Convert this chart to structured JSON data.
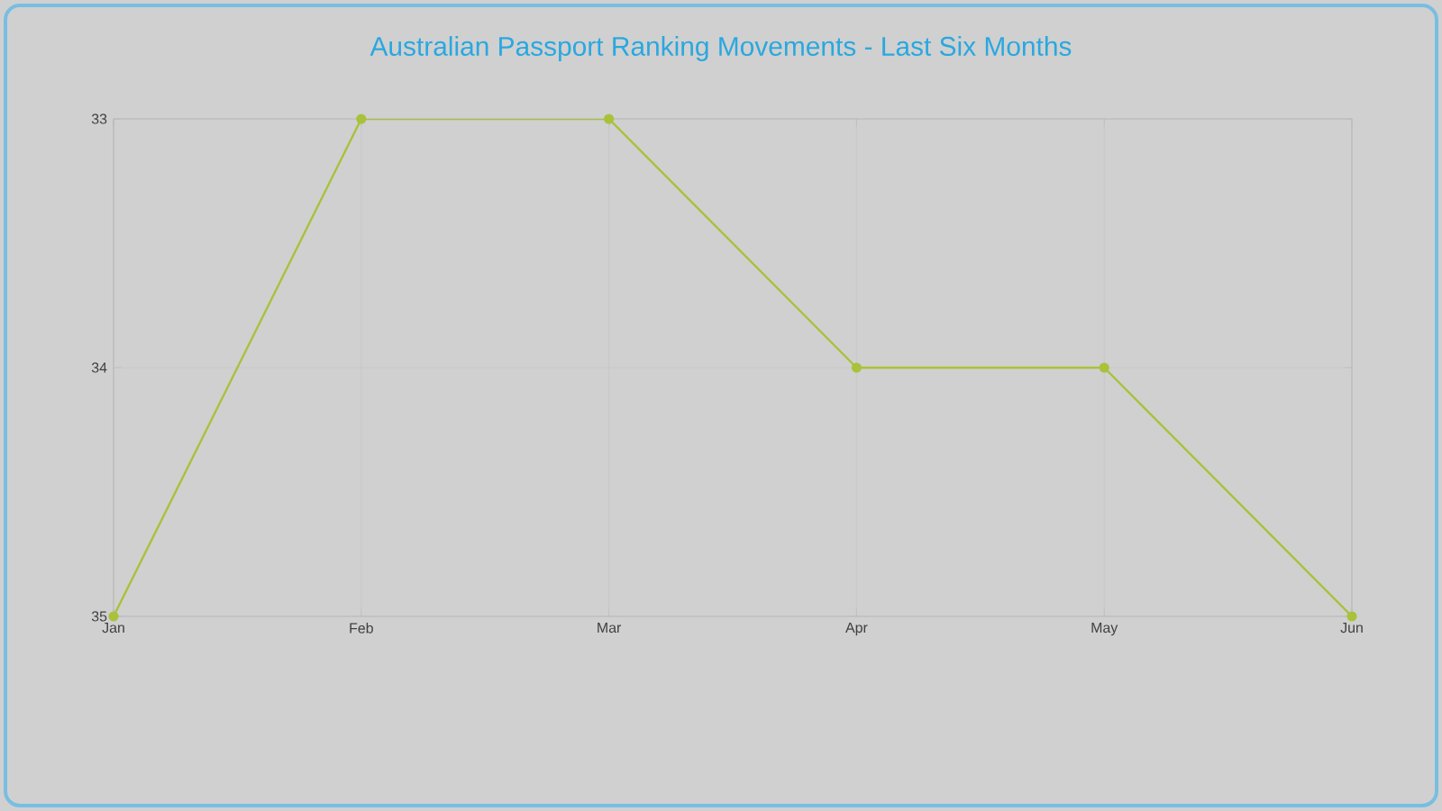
{
  "chart_data": {
    "type": "line",
    "title": "Australian Passport Ranking Movements - Last Six Months",
    "categories": [
      "Jan",
      "Feb",
      "Mar",
      "Apr",
      "May",
      "Jun"
    ],
    "series": [
      {
        "color": "#a8c23a",
        "values": [
          35,
          33,
          33,
          34,
          34,
          35
        ]
      }
    ],
    "ylim": [
      35,
      33
    ],
    "yticks": [
      33,
      34,
      35
    ],
    "grid": true,
    "marker": "circle",
    "line_style": "solid"
  }
}
